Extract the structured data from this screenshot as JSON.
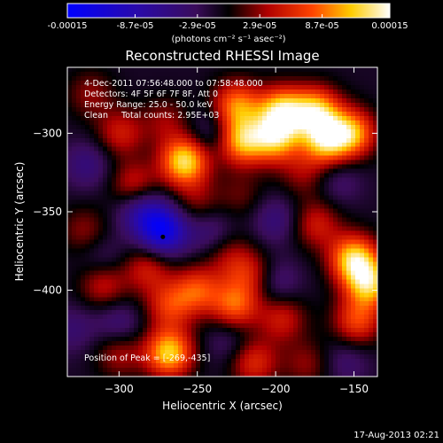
{
  "colorbar": {
    "tick_labels": [
      "-0.00015",
      "-8.7e-05",
      "-2.9e-05",
      "2.9e-05",
      "8.7e-05",
      "0.00015"
    ],
    "units_label": "(photons cm⁻² s⁻¹ asec⁻²)"
  },
  "chart_data": {
    "type": "heatmap",
    "title": "Reconstructed RHESSI Image",
    "xlabel": "Heliocentric X (arcsec)",
    "ylabel": "Heliocentric Y (arcsec)",
    "xlim": [
      -333,
      -135
    ],
    "ylim": [
      -455,
      -258
    ],
    "x_ticks": [
      -300,
      -250,
      -200,
      -150
    ],
    "y_ticks": [
      -300,
      -350,
      -400
    ],
    "x_tick_labels": [
      "−300",
      "−250",
      "−200",
      "−150"
    ],
    "y_tick_labels": [
      "−300",
      "−350",
      "−400"
    ],
    "color_range": [
      -0.00015,
      0.00015
    ],
    "colormap": "blue-purple-black-red-yellow-white",
    "annotations": [
      "4-Dec-2011 07:56:48.000 to 07:58:48.000",
      "Detectors: 4F 5F 6F 7F 8F, Att 0",
      "Energy Range: 25.0 - 50.0 keV",
      "Clean     Total counts: 2.95E+03"
    ],
    "position_label": "Position of Peak = [-269,-435]",
    "peak_position": [
      -269,
      -435
    ],
    "blobs": [
      {
        "x": -225,
        "y": -282,
        "v": 0.0001
      },
      {
        "x": -196,
        "y": -286,
        "v": 0.00013
      },
      {
        "x": -174,
        "y": -286,
        "v": 0.00012
      },
      {
        "x": -222,
        "y": -305,
        "v": 0.00012
      },
      {
        "x": -258,
        "y": -318,
        "v": 0.00014
      },
      {
        "x": -200,
        "y": -304,
        "v": 0.00011
      },
      {
        "x": -151,
        "y": -300,
        "v": 0.00011
      },
      {
        "x": -168,
        "y": -305,
        "v": 0.00012
      },
      {
        "x": -299,
        "y": -300,
        "v": 6e-05
      },
      {
        "x": -318,
        "y": -275,
        "v": 4e-05
      },
      {
        "x": -270,
        "y": -292,
        "v": 4e-05
      },
      {
        "x": -290,
        "y": -334,
        "v": 7e-05
      },
      {
        "x": -250,
        "y": -345,
        "v": 4e-05
      },
      {
        "x": -282,
        "y": -386,
        "v": 6e-05
      },
      {
        "x": -268,
        "y": -410,
        "v": 7e-05
      },
      {
        "x": -250,
        "y": -400,
        "v": 8e-05
      },
      {
        "x": -230,
        "y": -378,
        "v": 4e-05
      },
      {
        "x": -226,
        "y": -410,
        "v": 9e-05
      },
      {
        "x": -216,
        "y": -390,
        "v": 6e-05
      },
      {
        "x": -196,
        "y": -418,
        "v": 6e-05
      },
      {
        "x": -174,
        "y": -358,
        "v": 6e-05
      },
      {
        "x": -150,
        "y": -380,
        "v": 0.00013
      },
      {
        "x": -140,
        "y": -396,
        "v": 0.00012
      },
      {
        "x": -148,
        "y": -420,
        "v": 8e-05
      },
      {
        "x": -268,
        "y": -440,
        "v": 0.00013
      },
      {
        "x": -310,
        "y": -396,
        "v": 6e-05
      },
      {
        "x": -322,
        "y": -362,
        "v": 4e-05
      },
      {
        "x": -182,
        "y": -326,
        "v": 4e-05
      },
      {
        "x": -222,
        "y": -340,
        "v": 3e-05
      },
      {
        "x": -300,
        "y": -440,
        "v": 5e-05
      },
      {
        "x": -214,
        "y": -446,
        "v": 7e-05
      },
      {
        "x": -180,
        "y": -447,
        "v": 4e-05
      },
      {
        "x": -242,
        "y": -362,
        "v": -4e-05
      },
      {
        "x": -272,
        "y": -362,
        "v": -0.00012
      },
      {
        "x": -286,
        "y": -348,
        "v": -7e-05
      },
      {
        "x": -200,
        "y": -355,
        "v": -4e-05
      },
      {
        "x": -320,
        "y": -320,
        "v": -4e-05
      },
      {
        "x": -240,
        "y": -300,
        "v": -4e-05
      },
      {
        "x": -300,
        "y": -422,
        "v": -4e-05
      },
      {
        "x": -160,
        "y": -330,
        "v": -3e-05
      },
      {
        "x": -230,
        "y": -432,
        "v": -3e-05
      },
      {
        "x": -200,
        "y": -395,
        "v": -4e-05
      },
      {
        "x": -155,
        "y": -445,
        "v": -3e-05
      },
      {
        "x": -330,
        "y": -425,
        "v": -3e-05
      },
      {
        "x": -310,
        "y": -380,
        "v": -3e-05
      }
    ]
  },
  "footer": {
    "timestamp": "17-Aug-2013 02:21"
  }
}
